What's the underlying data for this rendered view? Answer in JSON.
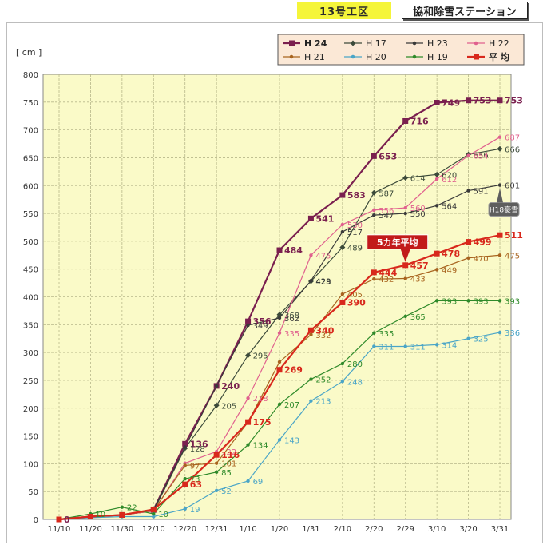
{
  "header": {
    "section": "13号工区",
    "station": "協和除雪ステーション"
  },
  "chart_data": {
    "type": "line",
    "title": "",
    "xlabel": "",
    "ylabel": "[ cm ]",
    "ylim": [
      0,
      800
    ],
    "yticks": [
      "0",
      "50",
      "100",
      "150",
      "200",
      "250",
      "300",
      "350",
      "400",
      "450",
      "500",
      "550",
      "600",
      "650",
      "700",
      "750",
      "800"
    ],
    "categories": [
      "11/10",
      "11/20",
      "11/30",
      "12/10",
      "12/20",
      "12/31",
      "1/10",
      "1/20",
      "1/31",
      "2/10",
      "2/20",
      "2/29",
      "3/10",
      "3/20",
      "3/31"
    ],
    "grid": true,
    "legend_position": "top-right",
    "series": [
      {
        "name": "H 24",
        "color": "#7a1f4f",
        "marker": "square",
        "width": 2.2,
        "values": [
          0,
          5,
          8,
          17,
          136,
          240,
          356,
          484,
          541,
          583,
          653,
          716,
          749,
          753,
          753
        ],
        "labels": [
          "0",
          "",
          "",
          "",
          "136",
          "240",
          "356",
          "484",
          "541",
          "583",
          "653",
          "716",
          "749",
          "753",
          "753"
        ]
      },
      {
        "name": "H 17",
        "color": "#3c4a3a",
        "marker": "diamond",
        "width": 1.2,
        "values": [
          0,
          5,
          8,
          15,
          128,
          205,
          295,
          368,
          428,
          489,
          587,
          614,
          620,
          656,
          666
        ],
        "labels": [
          "",
          "",
          "",
          "",
          "128",
          "205",
          "295",
          "368",
          "428",
          "489",
          "587",
          "614",
          "620",
          "656",
          "666"
        ]
      },
      {
        "name": "H 23",
        "color": "#3a3a3a",
        "marker": "dot",
        "width": 1.2,
        "values": [
          0,
          5,
          8,
          17,
          130,
          240,
          349,
          362,
          429,
          517,
          547,
          550,
          564,
          591,
          601
        ],
        "labels": [
          "",
          "",
          "",
          "",
          "",
          "",
          "349",
          "362",
          "429",
          "517",
          "547",
          "550",
          "564",
          "591",
          "601"
        ]
      },
      {
        "name": "H 22",
        "color": "#e0608e",
        "marker": "dot",
        "width": 1.2,
        "values": [
          0,
          5,
          8,
          15,
          101,
          122,
          218,
          335,
          475,
          530,
          556,
          560,
          612,
          654,
          687
        ],
        "labels": [
          "",
          "",
          "",
          "",
          "",
          "122",
          "218",
          "335",
          "475",
          "530",
          "556",
          "560",
          "612",
          "654",
          "687"
        ]
      },
      {
        "name": "H 21",
        "color": "#a8641f",
        "marker": "dot",
        "width": 1.2,
        "values": [
          0,
          5,
          8,
          16,
          97,
          101,
          175,
          283,
          332,
          405,
          432,
          433,
          449,
          470,
          475
        ],
        "labels": [
          "",
          "",
          "",
          "",
          "97",
          "101",
          "",
          "",
          "332",
          "405",
          "432",
          "433",
          "449",
          "470",
          "475"
        ]
      },
      {
        "name": "H 20",
        "color": "#4aa5c7",
        "marker": "dot",
        "width": 1.2,
        "values": [
          0,
          3,
          5,
          5,
          19,
          52,
          69,
          143,
          213,
          248,
          311,
          311,
          314,
          325,
          336
        ],
        "labels": [
          "",
          "",
          "",
          "",
          "19",
          "52",
          "69",
          "143",
          "213",
          "248",
          "311",
          "311",
          "314",
          "325",
          "336"
        ]
      },
      {
        "name": "H 19",
        "color": "#2f8a2a",
        "marker": "dot",
        "width": 1.2,
        "values": [
          0,
          10,
          22,
          10,
          73,
          85,
          134,
          207,
          252,
          280,
          335,
          365,
          393,
          393,
          393
        ],
        "labels": [
          "",
          "10",
          "22",
          "10",
          "73",
          "85",
          "134",
          "207",
          "252",
          "280",
          "335",
          "365",
          "393",
          "393",
          "393"
        ]
      },
      {
        "name": "平 均",
        "color": "#d8281c",
        "marker": "square",
        "width": 2.2,
        "values": [
          0,
          5,
          8,
          18,
          63,
          116,
          175,
          269,
          340,
          390,
          444,
          457,
          478,
          499,
          511
        ],
        "labels": [
          "",
          "",
          "",
          "",
          "63",
          "116",
          "175",
          "269",
          "340",
          "390",
          "444",
          "457",
          "478",
          "499",
          "511"
        ]
      }
    ],
    "annotations": [
      {
        "text": "5カ年平均",
        "category": "2/29",
        "value": 457
      },
      {
        "text": "H18豪雪",
        "category": "3/31",
        "value": 601
      }
    ]
  }
}
